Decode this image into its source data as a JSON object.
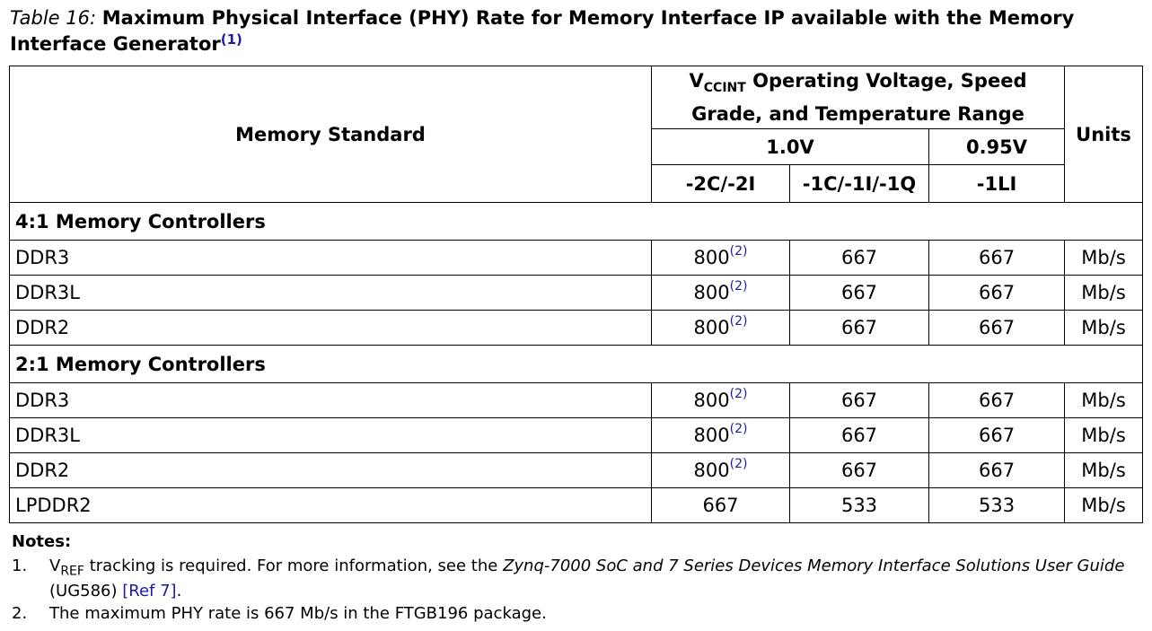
{
  "caption": {
    "label": "Table  16:",
    "title": "Maximum Physical Interface (PHY) Rate for Memory Interface IP available with the Memory Interface Generator",
    "ref": "(1)"
  },
  "header": {
    "col_standard": "Memory Standard",
    "vccint_prefix": "V",
    "vccint_sub": "CCINT",
    "vccint_rest": " Operating Voltage, Speed Grade, and Temperature Range",
    "col_units": "Units",
    "voltages": [
      "1.0V",
      "0.95V"
    ],
    "grades": [
      "-2C/-2I",
      "-1C/-1I/-1Q",
      "-1LI"
    ]
  },
  "groups": [
    {
      "title": "4:1 Memory Controllers",
      "rows": [
        {
          "name": "DDR3",
          "v1": "800",
          "v1_ref": "(2)",
          "v2": "667",
          "v3": "667",
          "unit": "Mb/s"
        },
        {
          "name": "DDR3L",
          "v1": "800",
          "v1_ref": "(2)",
          "v2": "667",
          "v3": "667",
          "unit": "Mb/s"
        },
        {
          "name": "DDR2",
          "v1": "800",
          "v1_ref": "(2)",
          "v2": "667",
          "v3": "667",
          "unit": "Mb/s"
        }
      ]
    },
    {
      "title": "2:1 Memory Controllers",
      "rows": [
        {
          "name": "DDR3",
          "v1": "800",
          "v1_ref": "(2)",
          "v2": "667",
          "v3": "667",
          "unit": "Mb/s"
        },
        {
          "name": "DDR3L",
          "v1": "800",
          "v1_ref": "(2)",
          "v2": "667",
          "v3": "667",
          "unit": "Mb/s"
        },
        {
          "name": "DDR2",
          "v1": "800",
          "v1_ref": "(2)",
          "v2": "667",
          "v3": "667",
          "unit": "Mb/s"
        },
        {
          "name": "LPDDR2",
          "v1": "667",
          "v1_ref": "",
          "v2": "533",
          "v3": "533",
          "unit": "Mb/s"
        }
      ]
    }
  ],
  "notes": {
    "heading": "Notes:",
    "items": [
      {
        "num": "1.",
        "v": "V",
        "v_sub": "REF",
        "text_a": " tracking is required. For more information, see the ",
        "guide": "Zynq-7000 SoC and 7 Series Devices Memory Interface Solutions User Guide",
        "text_b": " (UG586) ",
        "link": "[Ref 7]",
        "text_c": "."
      },
      {
        "num": "2.",
        "text": "The maximum PHY rate is 667 Mb/s in the FTGB196 package."
      }
    ]
  }
}
